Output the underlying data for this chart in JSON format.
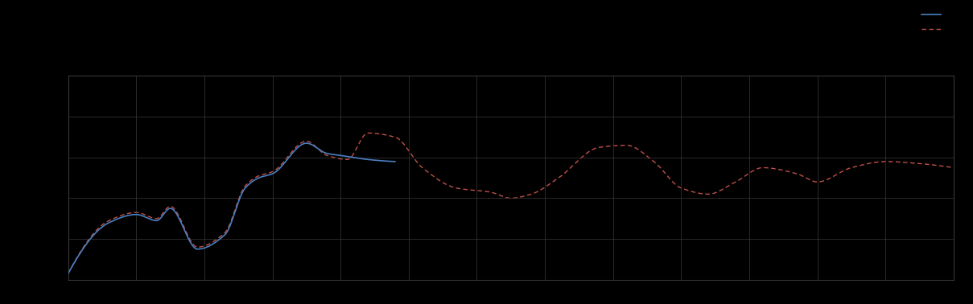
{
  "background_color": "#000000",
  "axes_facecolor": "#000000",
  "grid_color": "#3a3a3a",
  "line1_color": "#4a7fc1",
  "line2_color": "#c05048",
  "line1_linewidth": 1.2,
  "line2_linewidth": 1.0,
  "spine_color": "#555555",
  "figsize": [
    12.09,
    3.78
  ],
  "dpi": 100,
  "xlim": [
    0,
    130
  ],
  "ylim": [
    0,
    10
  ],
  "n_x_gridlines": 14,
  "n_y_gridlines": 6,
  "grid_alpha": 1.0,
  "grid_linewidth": 0.5
}
